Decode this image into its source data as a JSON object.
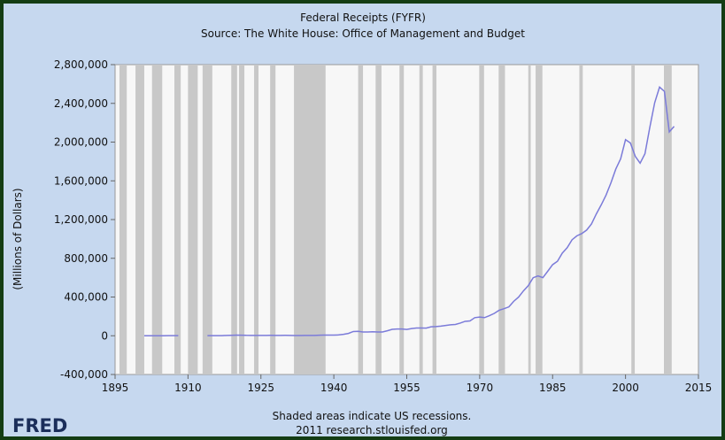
{
  "chart_data": {
    "type": "line",
    "title": "Federal Receipts (FYFR)",
    "subtitle": "Source: The White House: Office of Management and Budget",
    "y_label": "(Millions of Dollars)",
    "footnote": "Shaded areas indicate US recessions.",
    "source": "2011 research.stlouisfed.org",
    "logo": "FRED",
    "xlim": [
      1895,
      2015
    ],
    "xticks": [
      1895,
      1910,
      1925,
      1940,
      1955,
      1970,
      1985,
      2000,
      2015
    ],
    "ylim": [
      -400000,
      2800000
    ],
    "yticks": [
      {
        "value": -400000,
        "label": "-400,000"
      },
      0,
      {
        "value": 400000,
        "label": "400,000"
      },
      {
        "value": 800000,
        "label": "800,000"
      },
      {
        "value": 1200000,
        "label": "1,200,000"
      },
      {
        "value": 1600000,
        "label": "1,600,000"
      },
      {
        "value": 2000000,
        "label": "2,000,000"
      },
      {
        "value": 2400000,
        "label": "2,400,000"
      },
      {
        "value": 2800000,
        "label": "2,800,000"
      }
    ],
    "recessions": [
      [
        1895.9,
        1897.4
      ],
      [
        1899.2,
        1901
      ],
      [
        1902.6,
        1904.7
      ],
      [
        1907.2,
        1908.5
      ],
      [
        1910,
        1912
      ],
      [
        1913,
        1915
      ],
      [
        1918.9,
        1920.1
      ],
      [
        1920.5,
        1921.6
      ],
      [
        1923.6,
        1924.5
      ],
      [
        1926.9,
        1928
      ],
      [
        1931.8,
        1938.3
      ],
      [
        1945,
        1946
      ],
      [
        1948.6,
        1949.8
      ],
      [
        1953.5,
        1954.4
      ],
      [
        1957.6,
        1958.3
      ],
      [
        1960.3,
        1961.1
      ],
      [
        1969.9,
        1970.9
      ],
      [
        1973.9,
        1975.2
      ],
      [
        1980,
        1980.5
      ],
      [
        1981.5,
        1982.9
      ],
      [
        1990.5,
        1991.2
      ],
      [
        2001.2,
        2001.9
      ],
      [
        2007.9,
        2009.5
      ]
    ],
    "recession_color": "#c8c8c8",
    "x": [
      1901,
      1902,
      1903,
      1904,
      1905,
      1906,
      1907,
      1908,
      1909,
      1910,
      1911,
      1912,
      1913,
      1914,
      1915,
      1916,
      1917,
      1918,
      1919,
      1920,
      1921,
      1922,
      1923,
      1924,
      1925,
      1926,
      1927,
      1928,
      1929,
      1930,
      1931,
      1932,
      1933,
      1934,
      1935,
      1936,
      1937,
      1938,
      1939,
      1940,
      1941,
      1942,
      1943,
      1944,
      1945,
      1946,
      1947,
      1948,
      1949,
      1950,
      1951,
      1952,
      1953,
      1954,
      1955,
      1956,
      1957,
      1958,
      1959,
      1960,
      1961,
      1962,
      1963,
      1964,
      1965,
      1966,
      1967,
      1968,
      1969,
      1970,
      1971,
      1972,
      1973,
      1974,
      1975,
      1976,
      1977,
      1978,
      1979,
      1980,
      1981,
      1982,
      1983,
      1984,
      1985,
      1986,
      1987,
      1988,
      1989,
      1990,
      1991,
      1992,
      1993,
      1994,
      1995,
      1996,
      1997,
      1998,
      1999,
      2000,
      2001,
      2002,
      2003,
      2004,
      2005,
      2006,
      2007,
      2008,
      2009,
      2010
    ],
    "series": [
      {
        "name": "FYFR",
        "color": "#7b7bd9",
        "values": [
          588,
          562,
          562,
          541,
          544,
          595,
          666,
          602,
          null,
          null,
          null,
          null,
          null,
          735,
          698,
          783,
          1124,
          3645,
          5130,
          6649,
          5571,
          4026,
          3853,
          3871,
          3641,
          3795,
          4013,
          3900,
          3862,
          4058,
          3116,
          1924,
          1997,
          2955,
          3609,
          3923,
          5387,
          6751,
          6295,
          6548,
          8712,
          14634,
          24001,
          43747,
          45159,
          39296,
          38514,
          41560,
          39415,
          39443,
          51616,
          66167,
          69608,
          69701,
          65451,
          74587,
          79990,
          79636,
          79249,
          92492,
          94388,
          99676,
          106560,
          112613,
          116817,
          130835,
          148822,
          152973,
          186882,
          192807,
          187139,
          207309,
          230799,
          263224,
          279090,
          298060,
          355559,
          399561,
          463302,
          517112,
          599272,
          617766,
          600562,
          666438,
          734037,
          769155,
          854288,
          909238,
          991105,
          1031958,
          1054988,
          1091208,
          1154335,
          1258566,
          1351790,
          1453053,
          1579232,
          1721728,
          1827452,
          2025191,
          1991082,
          1853136,
          1782314,
          1880114,
          2153611,
          2406869,
          2567985,
          2523991,
          2104989,
          2162706
        ]
      }
    ]
  }
}
